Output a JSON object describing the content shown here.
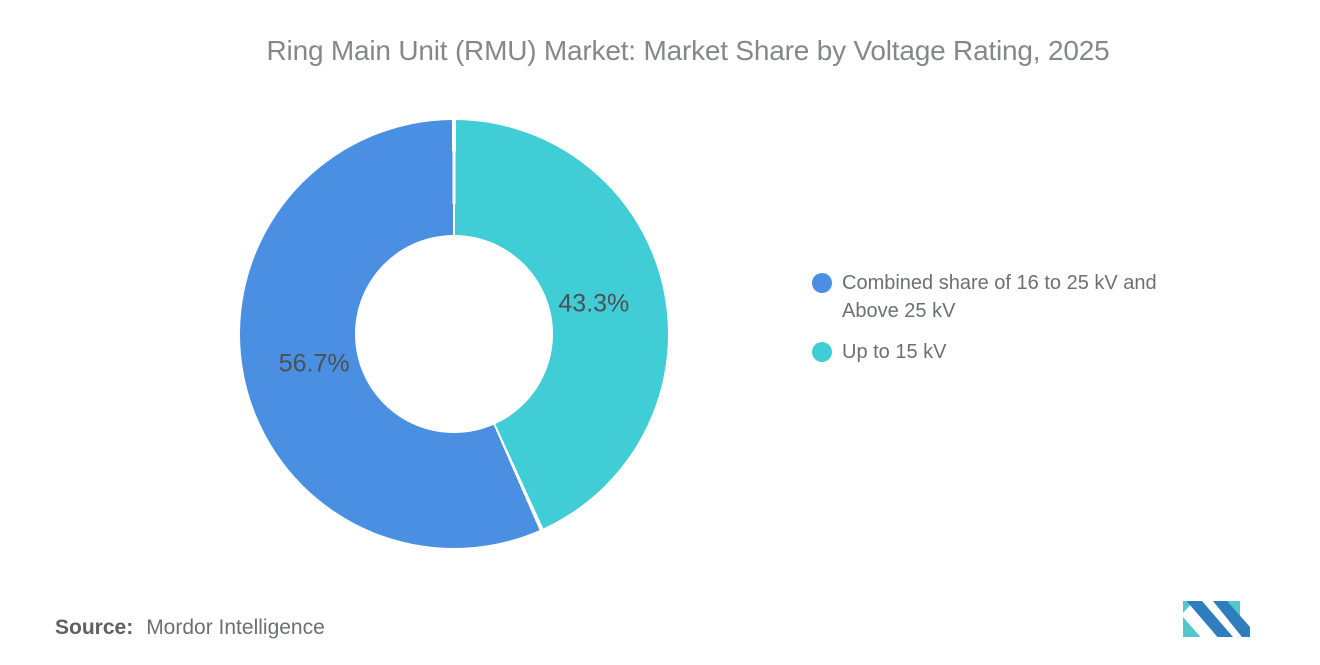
{
  "title": {
    "text": "Ring Main Unit (RMU) Market: Market Share by Voltage Rating, 2025",
    "color": "#85888B"
  },
  "chart_data": {
    "type": "pie",
    "subtype": "donut",
    "title": "Ring Main Unit (RMU) Market: Market Share by Voltage Rating, 2025",
    "unit": "%",
    "start_angle": "12 o'clock",
    "order_note": "teal slice (Up to 15 kV) occupies the right side clockwise from top; blue slice the left side",
    "legend_position": "right",
    "slices": [
      {
        "label": "Combined share of 16 to 25 kV and Above 25 kV",
        "value": 56.7,
        "display": "56.7%",
        "color": "#4A8FE2"
      },
      {
        "label": "Up to 15 kV",
        "value": 43.3,
        "display": "43.3%",
        "color": "#41CDD5"
      }
    ],
    "label_color": "#4B5053",
    "separator_color": "#FFFFFF"
  },
  "source": {
    "label": "Source:",
    "value": "Mordor Intelligence"
  },
  "logo": {
    "name": "mordor-intelligence-logo",
    "teal": "#54C6CE",
    "blue": "#2E7EBD"
  }
}
